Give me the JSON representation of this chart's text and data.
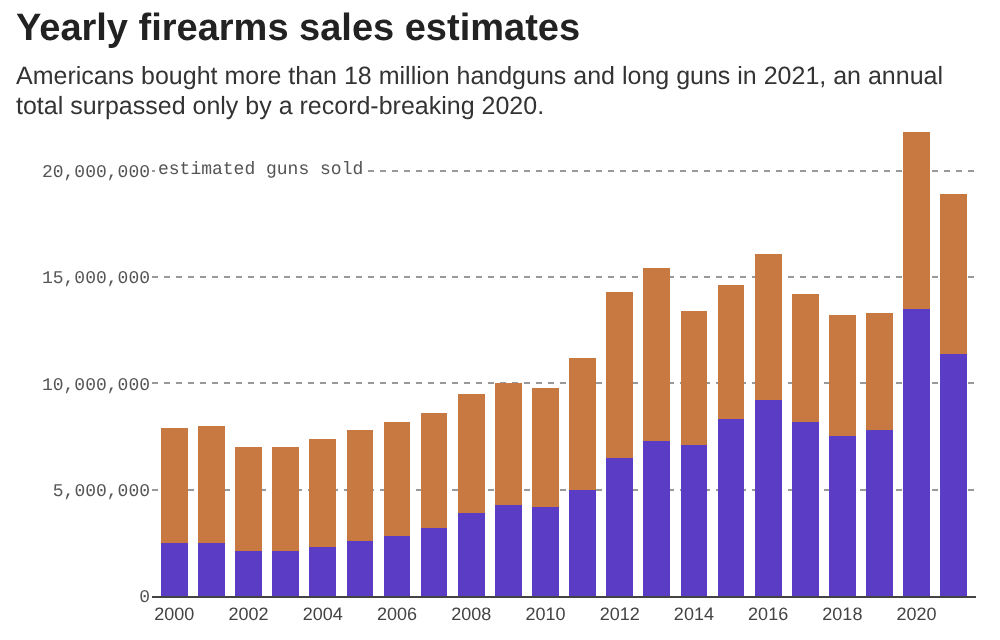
{
  "chart_data": {
    "type": "bar",
    "title": "Yearly firearms sales estimates",
    "subtitle": "Americans bought more than 18 million handguns and long guns in 2021, an annual total surpassed only by a record-breaking 2020.",
    "ylabel": "estimated guns sold",
    "x": [
      2000,
      2001,
      2002,
      2003,
      2004,
      2005,
      2006,
      2007,
      2008,
      2009,
      2010,
      2011,
      2012,
      2013,
      2014,
      2015,
      2016,
      2017,
      2018,
      2019,
      2020,
      2021
    ],
    "stacked": true,
    "series": [
      {
        "color": "#5b3cc4",
        "values": [
          2500000,
          2500000,
          2100000,
          2100000,
          2300000,
          2600000,
          2800000,
          3200000,
          3900000,
          4300000,
          4200000,
          5000000,
          6500000,
          7300000,
          7100000,
          8300000,
          9200000,
          8200000,
          7500000,
          7800000,
          13500000,
          11400000
        ]
      },
      {
        "color": "#c87941",
        "values": [
          5400000,
          5500000,
          4900000,
          4900000,
          5100000,
          5200000,
          5400000,
          5400000,
          5600000,
          5700000,
          5600000,
          6200000,
          7800000,
          8100000,
          6300000,
          6300000,
          6900000,
          6000000,
          5700000,
          5500000,
          8300000,
          7500000
        ]
      }
    ],
    "xlim": [
      1999.4,
      2021.6
    ],
    "xticks": [
      2000,
      2002,
      2004,
      2006,
      2008,
      2010,
      2012,
      2014,
      2016,
      2018,
      2020
    ],
    "ylim": [
      0,
      22000000
    ],
    "yticks": [
      {
        "value": 0,
        "label": "0"
      },
      {
        "value": 5000000,
        "label": "5,000,000"
      },
      {
        "value": 10000000,
        "label": "10,000,000"
      },
      {
        "value": 15000000,
        "label": "15,000,000"
      },
      {
        "value": 20000000,
        "label": "20,000,000"
      }
    ],
    "grid": "y",
    "legend": false
  }
}
